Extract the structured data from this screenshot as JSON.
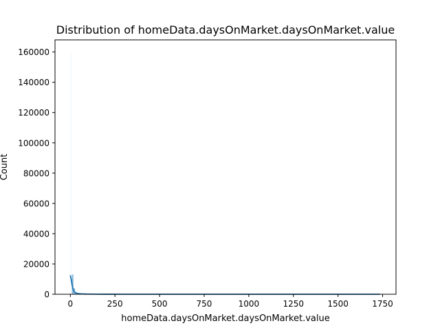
{
  "chart_data": {
    "type": "bar",
    "title": "Distribution of homeData.daysOnMarket.daysOnMarket.value",
    "xlabel": "homeData.daysOnMarket.daysOnMarket.value",
    "ylabel": "Count",
    "xlim": [
      -86,
      1825
    ],
    "ylim": [
      0,
      168000
    ],
    "xticks": [
      0,
      250,
      500,
      750,
      1000,
      1250,
      1500,
      1750
    ],
    "xtick_labels": [
      "0",
      "250",
      "500",
      "750",
      "1000",
      "1250",
      "1500",
      "1750"
    ],
    "yticks": [
      0,
      20000,
      40000,
      60000,
      80000,
      100000,
      120000,
      140000,
      160000
    ],
    "ytick_labels": [
      "0",
      "20000",
      "40000",
      "60000",
      "80000",
      "100000",
      "120000",
      "140000",
      "160000"
    ],
    "grid": false,
    "histogram": {
      "bin_width": 8.7,
      "bins": [
        {
          "x": 0,
          "count": 160000
        },
        {
          "x": 8.7,
          "count": 13000
        },
        {
          "x": 17.4,
          "count": 4000
        },
        {
          "x": 26.1,
          "count": 1500
        },
        {
          "x": 34.8,
          "count": 700
        },
        {
          "x": 43.5,
          "count": 400
        },
        {
          "x": 52.2,
          "count": 250
        },
        {
          "x": 60.9,
          "count": 150
        },
        {
          "x": 69.6,
          "count": 100
        },
        {
          "x": 78.3,
          "count": 80
        },
        {
          "x": 87,
          "count": 60
        },
        {
          "x": 95.7,
          "count": 50
        }
      ],
      "bar_color": "#1f77b4"
    },
    "kde": {
      "x": [
        0,
        5,
        10,
        15,
        20,
        30,
        40,
        60,
        80,
        100,
        150,
        200,
        300,
        500,
        750,
        1000,
        1250,
        1500,
        1735
      ],
      "y": [
        12500,
        9500,
        6000,
        3500,
        2000,
        900,
        500,
        250,
        150,
        100,
        50,
        30,
        15,
        8,
        5,
        3,
        2,
        1,
        0
      ],
      "color": "#1f77b4"
    }
  }
}
